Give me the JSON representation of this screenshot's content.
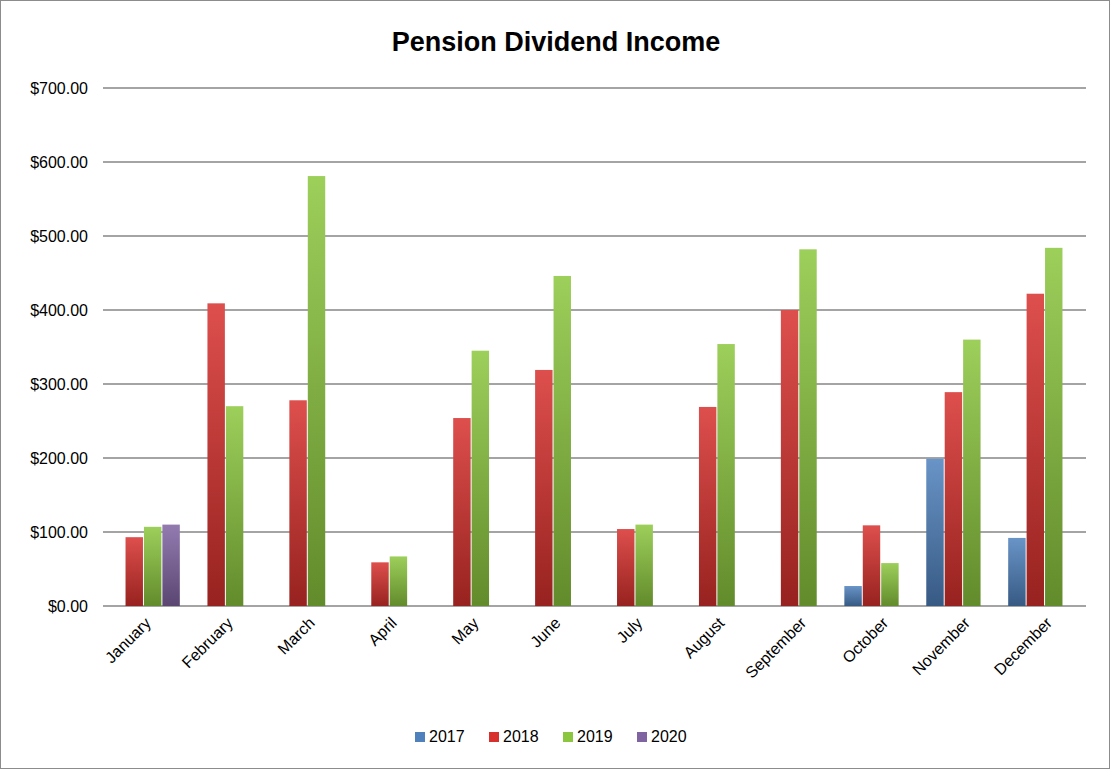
{
  "chart_data": {
    "type": "bar",
    "title": "Pension Dividend Income",
    "categories": [
      "January",
      "February",
      "March",
      "April",
      "May",
      "June",
      "July",
      "August",
      "September",
      "October",
      "November",
      "December"
    ],
    "series": [
      {
        "name": "2017",
        "color": "#4f81bd",
        "values": [
          null,
          null,
          null,
          null,
          null,
          null,
          null,
          null,
          null,
          27,
          199,
          92
        ]
      },
      {
        "name": "2018",
        "color": "#d7302d",
        "values": [
          93,
          409,
          278,
          59,
          254,
          319,
          104,
          269,
          400,
          109,
          289,
          422
        ]
      },
      {
        "name": "2019",
        "color": "#8cc63e",
        "values": [
          107,
          270,
          581,
          67,
          345,
          446,
          110,
          354,
          482,
          58,
          360,
          484
        ]
      },
      {
        "name": "2020",
        "color": "#8064a2",
        "values": [
          110,
          null,
          null,
          null,
          null,
          null,
          null,
          null,
          null,
          null,
          null,
          null
        ]
      }
    ],
    "ylim": [
      0,
      700
    ],
    "yticks": [
      {
        "value": 0,
        "label": "$0.00"
      },
      {
        "value": 100,
        "label": "$100.00"
      },
      {
        "value": 200,
        "label": "$200.00"
      },
      {
        "value": 300,
        "label": "$300.00"
      },
      {
        "value": 400,
        "label": "$400.00"
      },
      {
        "value": 500,
        "label": "$500.00"
      },
      {
        "value": 600,
        "label": "$600.00"
      },
      {
        "value": 700,
        "label": "$700.00"
      }
    ],
    "grid": true,
    "legend": "bottom"
  }
}
